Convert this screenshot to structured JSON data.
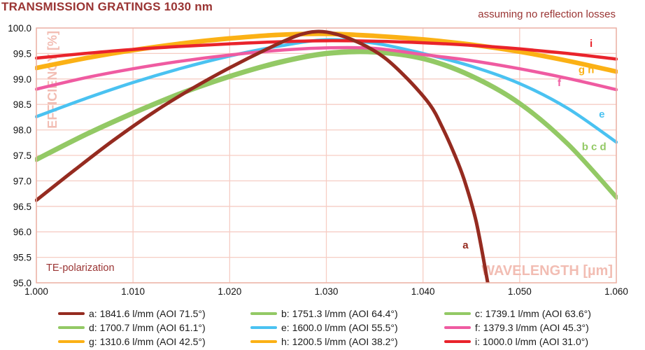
{
  "title": "TRANSMISSION GRATINGS 1030 nm",
  "subtitle": "assuming no reflection losses",
  "colors": {
    "dark_red_text": "#9a3433",
    "watermark": "#f2bdb3",
    "grid": "#f6cdc4",
    "frame": "#ebb3a7",
    "tick_text": "#111111"
  },
  "chart_data": {
    "type": "line",
    "title": "TRANSMISSION GRATINGS 1030 nm",
    "annotation": "assuming no reflection losses",
    "xlabel": "WAVELENGTH [µm]",
    "ylabel": "EFFICIENCY [%]",
    "polarization_note": "TE-polarization",
    "xlim": [
      1.0,
      1.06
    ],
    "ylim": [
      95.0,
      100.0
    ],
    "grid": true,
    "legend_position": "bottom",
    "x_ticks": [
      "1.000",
      "1.010",
      "1.020",
      "1.030",
      "1.040",
      "1.050",
      "1.060"
    ],
    "y_ticks": [
      "100.0",
      "99.5",
      "99.0",
      "98.5",
      "98.0",
      "97.5",
      "97.0",
      "96.5",
      "96.0",
      "95.5",
      "95.0"
    ],
    "x_common": [
      1.0,
      1.005,
      1.01,
      1.015,
      1.02,
      1.025,
      1.03,
      1.035,
      1.04,
      1.045,
      1.05,
      1.055,
      1.06
    ],
    "draw_order": [
      "d",
      "c",
      "b",
      "e",
      "f",
      "h",
      "g",
      "i",
      "a"
    ],
    "series": {
      "a": {
        "legend_label": "a: 1841.6 l/mm (AOI 71.5°)",
        "color": "#952b20",
        "width": 5,
        "x": [
          1.0,
          1.004,
          1.008,
          1.012,
          1.016,
          1.02,
          1.024,
          1.027,
          1.029,
          1.031,
          1.0335,
          1.036,
          1.0384,
          1.0407,
          1.042,
          1.0433,
          1.0443,
          1.0455,
          1.0467
        ],
        "y": [
          96.62,
          97.22,
          97.8,
          98.33,
          98.8,
          99.22,
          99.6,
          99.85,
          99.93,
          99.88,
          99.7,
          99.42,
          99.0,
          98.5,
          98.05,
          97.5,
          97.0,
          96.2,
          95.0
        ],
        "inplot_label": {
          "text": "a",
          "x": 1.0444,
          "y": 95.74
        }
      },
      "b": {
        "legend_label": "b: 1751.3 l/mm (AOI 64.4°)",
        "color": "#93c965",
        "width": 4.5,
        "y": [
          97.42,
          97.9,
          98.33,
          98.72,
          99.05,
          99.32,
          99.5,
          99.53,
          99.4,
          99.06,
          98.52,
          97.72,
          96.68
        ],
        "inplot_label": {
          "text": "b c d",
          "x": 1.0577,
          "y": 97.67
        }
      },
      "c": {
        "legend_label": "c: 1739.1 l/mm (AOI 63.6°)",
        "color": "#93c965",
        "width": 4.5,
        "y": [
          97.44,
          97.92,
          98.35,
          98.74,
          99.07,
          99.34,
          99.52,
          99.55,
          99.42,
          99.08,
          98.54,
          97.74,
          96.7
        ]
      },
      "d": {
        "legend_label": "d: 1700.7 l/mm (AOI 61.1°)",
        "color": "#93c965",
        "width": 4.5,
        "y": [
          97.4,
          97.88,
          98.31,
          98.7,
          99.03,
          99.3,
          99.48,
          99.51,
          99.38,
          99.04,
          98.5,
          97.7,
          96.66
        ]
      },
      "e": {
        "legend_label": "e: 1600.0 l/mm (AOI 55.5°)",
        "color": "#4ac2f1",
        "width": 4.5,
        "y": [
          98.26,
          98.61,
          98.93,
          99.21,
          99.45,
          99.64,
          99.77,
          99.7,
          99.5,
          99.25,
          98.91,
          98.42,
          97.76
        ],
        "inplot_label": {
          "text": "e",
          "x": 1.0585,
          "y": 98.31
        }
      },
      "f": {
        "legend_label": "f: 1379.3 l/mm (AOI 45.3°)",
        "color": "#ef5ba1",
        "width": 4.5,
        "y": [
          98.8,
          99.02,
          99.2,
          99.35,
          99.47,
          99.56,
          99.61,
          99.6,
          99.48,
          99.36,
          99.2,
          99.01,
          98.79
        ],
        "inplot_label": {
          "text": "f",
          "x": 1.0541,
          "y": 98.93
        }
      },
      "g": {
        "legend_label": "g: 1310.6 l/mm (AOI 42.5°)",
        "color": "#fbb115",
        "width": 4.5,
        "y": [
          99.23,
          99.42,
          99.58,
          99.71,
          99.81,
          99.88,
          99.9,
          99.86,
          99.79,
          99.69,
          99.55,
          99.37,
          99.16
        ],
        "inplot_label": {
          "text": "g h",
          "x": 1.0569,
          "y": 99.18
        }
      },
      "h": {
        "legend_label": "h: 1200.5 l/mm (AOI 38.2°)",
        "color": "#fbb115",
        "width": 4.5,
        "y": [
          99.2,
          99.39,
          99.55,
          99.68,
          99.78,
          99.85,
          99.87,
          99.83,
          99.76,
          99.66,
          99.52,
          99.34,
          99.13
        ]
      },
      "i": {
        "legend_label": "i: 1000.0 l/mm (AOI 31.0°)",
        "color": "#e9232b",
        "width": 4.5,
        "y": [
          99.41,
          99.5,
          99.58,
          99.64,
          99.69,
          99.73,
          99.75,
          99.74,
          99.71,
          99.66,
          99.59,
          99.5,
          99.39
        ],
        "inplot_label": {
          "text": "i",
          "x": 1.0574,
          "y": 99.7
        }
      }
    },
    "legend_columns": [
      [
        "a",
        "d",
        "g"
      ],
      [
        "b",
        "e",
        "h"
      ],
      [
        "c",
        "f",
        "i"
      ]
    ]
  }
}
